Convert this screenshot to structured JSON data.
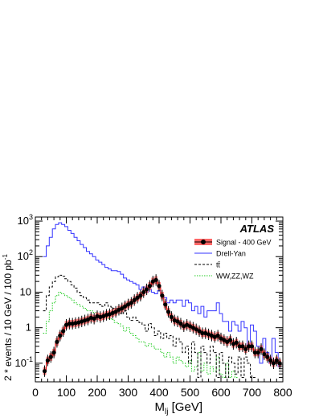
{
  "chart_data": {
    "type": "line",
    "title": "ATLAS",
    "xlabel_main": "M",
    "xlabel_sub": "lj",
    "xlabel_unit": " [GeV]",
    "ylabel_text": "2 * events / 10 GeV / 100 pb",
    "ylabel_sup": "-1",
    "xlim": [
      0,
      800
    ],
    "ylim": [
      0.03,
      1300
    ],
    "y_scale": "log",
    "x_ticks": [
      0,
      100,
      200,
      300,
      400,
      500,
      600,
      700,
      800
    ],
    "x_tick_labels": [
      "0",
      "100",
      "200",
      "300",
      "400",
      "500",
      "600",
      "700",
      "800"
    ],
    "y_ticks": [
      {
        "value": 0.1,
        "base": "10",
        "exp": "-1"
      },
      {
        "value": 1,
        "base": "1",
        "exp": ""
      },
      {
        "value": 10,
        "base": "10",
        "exp": ""
      },
      {
        "value": 100,
        "base": "10",
        "exp": "2"
      },
      {
        "value": 1000,
        "base": "10",
        "exp": "3"
      }
    ],
    "legend_position": "top-right",
    "legend": [
      {
        "label": "Signal - 400 GeV",
        "style": "signal",
        "color": "#000000"
      },
      {
        "label": "Drell-Yan",
        "style": "solid",
        "color": "#3333ff"
      },
      {
        "label": "tt̄",
        "style": "dashed",
        "color": "#000000"
      },
      {
        "label": "WW,ZZ,WZ",
        "style": "dotted",
        "color": "#22cc22"
      }
    ],
    "series": [
      {
        "name": "Drell-Yan",
        "color": "#3333ff",
        "style": "solid",
        "x": [
          30,
          40,
          50,
          60,
          70,
          80,
          90,
          100,
          110,
          120,
          130,
          140,
          150,
          160,
          170,
          180,
          190,
          200,
          210,
          220,
          230,
          240,
          250,
          260,
          270,
          280,
          290,
          300,
          310,
          320,
          330,
          340,
          350,
          360,
          370,
          380,
          390,
          400,
          410,
          420,
          430,
          440,
          450,
          460,
          470,
          480,
          490,
          500,
          510,
          520,
          530,
          540,
          550,
          560,
          570,
          580,
          590,
          600,
          610,
          620,
          630,
          640,
          650,
          660,
          670,
          680,
          690,
          700,
          710,
          720,
          730,
          740,
          750,
          760,
          770,
          780,
          790
        ],
        "values": [
          100,
          200,
          350,
          600,
          800,
          900,
          800,
          700,
          550,
          450,
          350,
          280,
          220,
          180,
          140,
          120,
          100,
          80,
          70,
          60,
          50,
          45,
          40,
          40,
          38,
          32,
          25,
          22,
          20,
          18,
          16,
          12,
          14,
          10,
          12,
          10,
          9,
          11,
          8,
          7,
          5,
          6,
          5,
          6,
          6,
          4,
          6,
          5,
          3,
          4,
          2.5,
          4,
          2,
          3,
          3,
          3,
          5,
          2.5,
          1.5,
          1.5,
          0.8,
          1.5,
          1.2,
          0.8,
          1.5,
          1,
          0.3,
          1.2,
          0.8,
          0.3,
          0.1,
          0.5,
          0.2,
          0.1,
          0.5,
          0.2,
          0.08
        ]
      },
      {
        "name": "ttbar",
        "color": "#000000",
        "style": "dashed",
        "x": [
          30,
          40,
          50,
          60,
          70,
          80,
          90,
          100,
          110,
          120,
          130,
          140,
          150,
          160,
          170,
          180,
          190,
          200,
          210,
          220,
          230,
          240,
          250,
          260,
          270,
          280,
          290,
          300,
          310,
          320,
          330,
          340,
          350,
          360,
          370,
          380,
          390,
          400,
          410,
          420,
          430,
          440,
          450,
          460,
          470,
          480,
          490,
          500,
          510,
          520,
          530,
          540,
          550,
          560,
          570,
          580,
          590,
          600,
          610,
          620,
          630,
          640,
          650,
          660,
          670,
          680,
          690,
          700,
          710
        ],
        "values": [
          3,
          8,
          14,
          20,
          27,
          30,
          28,
          24,
          20,
          16,
          13,
          10,
          8,
          7,
          6,
          5,
          5,
          5,
          4.5,
          4,
          5,
          4,
          3.5,
          3.5,
          3,
          2.5,
          3,
          2,
          1.6,
          2,
          1.6,
          1.4,
          1.2,
          0.8,
          1.3,
          1,
          0.6,
          0.8,
          0.5,
          0.7,
          0.5,
          0.6,
          0.3,
          0.5,
          0.4,
          0.2,
          0.3,
          0.1,
          0.4,
          0.2,
          0.04,
          0.3,
          0.2,
          0.1,
          0.3,
          0.2,
          0.04,
          0.2,
          0.1,
          0.04,
          0.15,
          0.1,
          0.05,
          0.15,
          0.04,
          0.15,
          0.1,
          0.04,
          0.04
        ]
      },
      {
        "name": "WW,ZZ,WZ",
        "color": "#22cc22",
        "style": "dotted",
        "x": [
          30,
          40,
          50,
          60,
          70,
          80,
          90,
          100,
          110,
          120,
          130,
          140,
          150,
          160,
          170,
          180,
          190,
          200,
          210,
          220,
          230,
          240,
          250,
          260,
          270,
          280,
          290,
          300,
          310,
          320,
          330,
          340,
          350,
          360,
          370,
          380,
          390,
          400,
          410,
          420,
          430,
          440,
          450,
          460,
          470,
          480,
          490,
          500,
          510,
          520,
          530,
          540,
          550,
          560,
          570,
          580,
          590,
          600,
          610,
          620,
          630,
          640,
          650
        ],
        "values": [
          0.7,
          1.5,
          3,
          5,
          8,
          10,
          9,
          8,
          7,
          6,
          5,
          4.5,
          4,
          3.5,
          3,
          3,
          2.7,
          2.5,
          2.2,
          2,
          2,
          1.8,
          1.7,
          1.4,
          1.3,
          1.1,
          0.8,
          1,
          0.7,
          0.6,
          0.5,
          0.4,
          0.4,
          0.3,
          0.35,
          0.3,
          0.25,
          0.25,
          0.2,
          0.15,
          0.2,
          0.15,
          0.1,
          0.15,
          0.12,
          0.1,
          0.08,
          0.12,
          0.06,
          0.08,
          0.2,
          0.06,
          0.1,
          0.05,
          0.08,
          0.06,
          0.15,
          0.05,
          0.04,
          0.1,
          0.04,
          0.06,
          0.04
        ]
      },
      {
        "name": "Signal - 400 GeV",
        "color": "#000000",
        "band_color": "#ff6666",
        "style": "signal",
        "x": [
          30,
          40,
          50,
          60,
          70,
          80,
          90,
          100,
          110,
          120,
          130,
          140,
          150,
          160,
          170,
          180,
          190,
          200,
          210,
          220,
          230,
          240,
          250,
          260,
          270,
          280,
          290,
          300,
          310,
          320,
          330,
          340,
          350,
          360,
          370,
          380,
          390,
          400,
          410,
          420,
          430,
          440,
          450,
          460,
          470,
          480,
          490,
          500,
          510,
          520,
          530,
          540,
          550,
          560,
          570,
          580,
          590,
          600,
          610,
          620,
          630,
          640,
          650,
          660,
          670,
          680,
          690,
          700,
          710,
          720,
          730,
          740,
          750,
          760,
          770,
          780,
          790
        ],
        "values": [
          0.06,
          0.12,
          0.15,
          0.2,
          0.4,
          0.6,
          0.8,
          1.2,
          1.3,
          1.3,
          1.35,
          1.4,
          1.5,
          1.6,
          1.7,
          1.9,
          1.8,
          2.1,
          2,
          2.1,
          2.3,
          2.4,
          2.6,
          2.8,
          3.2,
          3.5,
          4,
          4.5,
          5,
          6,
          7,
          8,
          10,
          12,
          15,
          20,
          22,
          15,
          8,
          4.5,
          2.8,
          2,
          1.6,
          1.5,
          1.3,
          1.1,
          1.2,
          1.1,
          1,
          0.9,
          0.8,
          0.7,
          0.7,
          0.65,
          0.6,
          0.55,
          0.6,
          0.5,
          0.45,
          0.4,
          0.45,
          0.35,
          0.38,
          0.3,
          0.3,
          0.25,
          0.3,
          0.3,
          0.2,
          0.2,
          0.25,
          0.18,
          0.15,
          0.12,
          0.1,
          0.12,
          0.1
        ]
      }
    ]
  }
}
